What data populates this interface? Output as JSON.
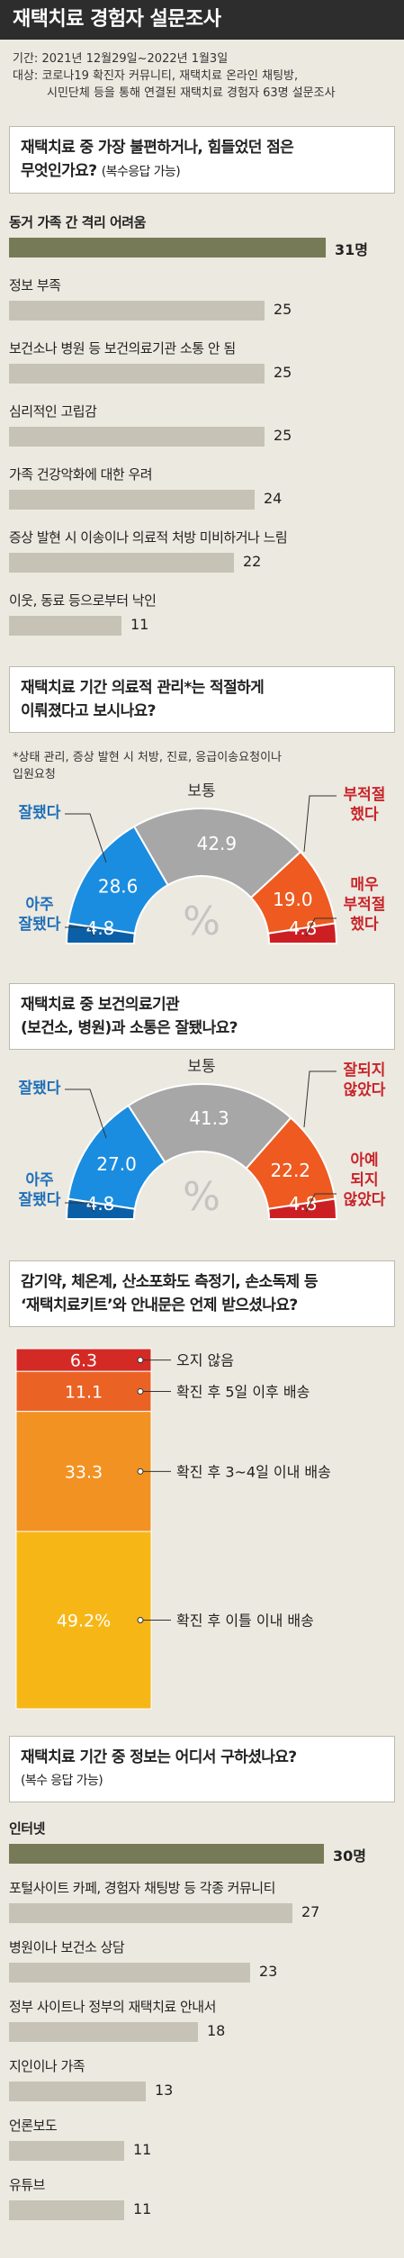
{
  "header": {
    "title": "재택치료 경험자 설문조사"
  },
  "meta": {
    "period_label": "기간:",
    "period": "2021년 12월29일~2022년 1월3일",
    "subject_label": "대상:",
    "subject_line1": "코로나19 확진자 커뮤니티, 재택치료 온라인 채팅방,",
    "subject_line2": "시민단체 등을 통해 연결된 재택치료 경험자 63명 설문조사"
  },
  "q1": {
    "line1": "재택치료 중 가장 불편하거나, 힘들었던 점은",
    "line2": "무엇인가요?",
    "sub": "(복수응답 가능)"
  },
  "q2": {
    "line1": "재택치료 기간 의료적 관리*는 적절하게",
    "line2": "이뤄졌다고 보시나요?",
    "note1": "*상태 관리, 증상 발현 시 처방, 진료, 응급이송요청이나",
    "note2": "입원요청"
  },
  "q3": {
    "line1": "재택치료 중 보건의료기관",
    "line2": "(보건소, 병원)과 소통은 잘됐나요?"
  },
  "q4": {
    "line1": "감기약, 체온계, 산소포화도 측정기, 손소독제 등",
    "line2": "‘재택치료키트’와 안내문은 언제 받으셨나요?"
  },
  "q5": {
    "line1": "재택치료 기간 중 정보는 어디서 구하셨나요?",
    "sub": "(복수 응답 가능)"
  },
  "chart_data": [
    {
      "type": "bar",
      "orientation": "horizontal",
      "unit": "명",
      "categories": [
        "동거 가족 간 격리 어려움",
        "정보 부족",
        "보건소나 병원 등 보건의료기관 소통 안 됨",
        "심리적인 고립감",
        "가족 건강악화에 대한 우려",
        "증상 발현 시 이송이나 의료적 처방 미비하거나 느림",
        "이웃, 동료 등으로부터 낙인"
      ],
      "values": [
        31,
        25,
        25,
        25,
        24,
        22,
        11
      ],
      "value_labels": [
        "31명",
        "25",
        "25",
        "25",
        "24",
        "22",
        "11"
      ],
      "colors": {
        "top": "#777a56",
        "rest": "#c6c2b6"
      }
    },
    {
      "type": "pie",
      "shape": "half-donut",
      "center_label": "%",
      "categories": [
        "아주 잘됐다",
        "잘됐다",
        "보통",
        "부적절했다",
        "매우 부적절했다"
      ],
      "labels": [
        [
          "아주",
          "잘됐다"
        ],
        [
          "잘됐다"
        ],
        [
          "보통"
        ],
        [
          "부적절",
          "했다"
        ],
        [
          "매우",
          "부적절",
          "했다"
        ]
      ],
      "values": [
        4.8,
        28.6,
        42.9,
        19.0,
        4.8
      ],
      "value_labels": [
        "4.8",
        "28.6",
        "42.9",
        "19.0",
        "4.8"
      ],
      "colors": [
        "#0b5fa6",
        "#1a8de0",
        "#a7a7a7",
        "#ee5a20",
        "#cc1f24"
      ]
    },
    {
      "type": "pie",
      "shape": "half-donut",
      "center_label": "%",
      "categories": [
        "아주 잘됐다",
        "잘됐다",
        "보통",
        "잘되지 않았다",
        "아예 되지 않았다"
      ],
      "labels": [
        [
          "아주",
          "잘됐다"
        ],
        [
          "잘됐다"
        ],
        [
          "보통"
        ],
        [
          "잘되지",
          "않았다"
        ],
        [
          "아예",
          "되지",
          "않았다"
        ]
      ],
      "values": [
        4.8,
        27.0,
        41.3,
        22.2,
        4.8
      ],
      "value_labels": [
        "4.8",
        "27.0",
        "41.3",
        "22.2",
        "4.8"
      ],
      "colors": [
        "#0b5fa6",
        "#1a8de0",
        "#a7a7a7",
        "#ee5a20",
        "#cc1f24"
      ]
    },
    {
      "type": "bar",
      "orientation": "stacked-vertical",
      "unit": "%",
      "categories": [
        "오지 않음",
        "확진 후 5일 이후 배송",
        "확진 후 3~4일 이내 배송",
        "확진 후 이틀 이내 배송"
      ],
      "values": [
        6.3,
        11.1,
        33.3,
        49.2
      ],
      "value_labels": [
        "6.3",
        "11.1",
        "33.3",
        "49.2%"
      ],
      "colors": [
        "#d42a26",
        "#ea6325",
        "#f29222",
        "#f6b716"
      ]
    },
    {
      "type": "bar",
      "orientation": "horizontal",
      "unit": "명",
      "categories": [
        "인터넷",
        "포털사이트 카페, 경험자 채팅방 등 각종 커뮤니티",
        "병원이나 보건소 상담",
        "정부 사이트나 정부의 재택치료 안내서",
        "지인이나 가족",
        "언론보도",
        "유튜브"
      ],
      "values": [
        30,
        27,
        23,
        18,
        13,
        11,
        11
      ],
      "value_labels": [
        "30명",
        "27",
        "23",
        "18",
        "13",
        "11",
        "11"
      ],
      "colors": {
        "top": "#777a56",
        "rest": "#c6c2b6"
      }
    }
  ]
}
